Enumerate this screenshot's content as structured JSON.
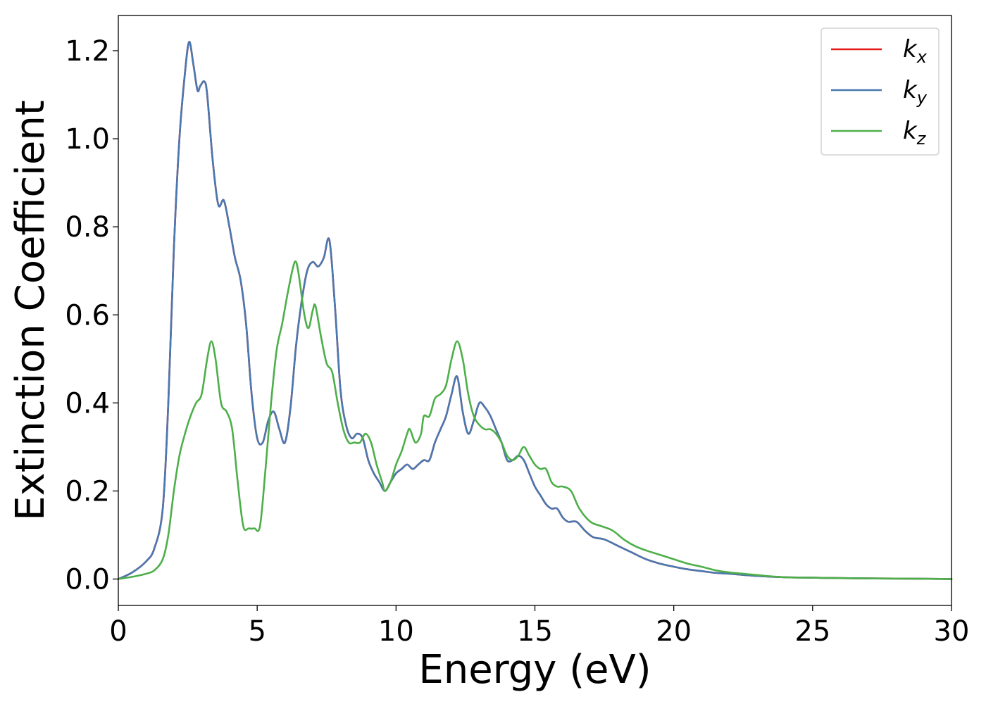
{
  "chart_data": {
    "type": "line",
    "title": "",
    "xlabel": "Energy (eV)",
    "ylabel": "Extinction Coefficient",
    "xlim": [
      0,
      30
    ],
    "ylim": [
      -0.06,
      1.28
    ],
    "xticks": [
      0,
      5,
      10,
      15,
      20,
      25,
      30
    ],
    "xtick_labels": [
      "0",
      "5",
      "10",
      "15",
      "20",
      "25",
      "30"
    ],
    "yticks": [
      0.0,
      0.2,
      0.4,
      0.6,
      0.8,
      1.0,
      1.2
    ],
    "ytick_labels": [
      "0.0",
      "0.2",
      "0.4",
      "0.6",
      "0.8",
      "1.0",
      "1.2"
    ],
    "grid": false,
    "legend_position": "top-right",
    "series": [
      {
        "name": "k_x",
        "base": "k",
        "sub": "x",
        "color": "#e41a1c",
        "x": [
          0,
          0.5,
          1.0,
          1.3,
          1.6,
          1.8,
          2.0,
          2.2,
          2.4,
          2.55,
          2.7,
          2.85,
          2.95,
          3.1,
          3.2,
          3.4,
          3.6,
          3.8,
          4.0,
          4.2,
          4.4,
          4.6,
          4.8,
          5.0,
          5.2,
          5.4,
          5.6,
          5.8,
          6.0,
          6.2,
          6.4,
          6.6,
          6.8,
          7.0,
          7.2,
          7.4,
          7.6,
          7.8,
          8.0,
          8.2,
          8.4,
          8.6,
          8.8,
          9.0,
          9.2,
          9.4,
          9.6,
          9.8,
          10.0,
          10.2,
          10.4,
          10.6,
          10.8,
          11.0,
          11.2,
          11.4,
          11.6,
          11.8,
          12.0,
          12.2,
          12.4,
          12.6,
          12.8,
          13.0,
          13.2,
          13.4,
          13.6,
          13.8,
          14.0,
          14.2,
          14.4,
          14.6,
          14.8,
          15.0,
          15.2,
          15.4,
          15.6,
          15.8,
          16.0,
          16.2,
          16.5,
          16.8,
          17.1,
          17.5,
          18.0,
          18.5,
          19.0,
          19.5,
          20.0,
          20.5,
          21.0,
          21.5,
          22.0,
          23.0,
          24.0,
          25.0,
          26.0,
          28.0,
          30.0
        ],
        "y": [
          0.0,
          0.015,
          0.04,
          0.07,
          0.16,
          0.4,
          0.75,
          1.0,
          1.15,
          1.22,
          1.17,
          1.11,
          1.12,
          1.13,
          1.1,
          0.95,
          0.85,
          0.86,
          0.8,
          0.73,
          0.68,
          0.58,
          0.42,
          0.32,
          0.31,
          0.36,
          0.38,
          0.34,
          0.31,
          0.39,
          0.53,
          0.63,
          0.7,
          0.72,
          0.71,
          0.73,
          0.77,
          0.62,
          0.43,
          0.35,
          0.32,
          0.33,
          0.32,
          0.27,
          0.24,
          0.22,
          0.2,
          0.22,
          0.24,
          0.25,
          0.26,
          0.25,
          0.26,
          0.27,
          0.27,
          0.31,
          0.34,
          0.37,
          0.42,
          0.46,
          0.38,
          0.33,
          0.36,
          0.4,
          0.39,
          0.37,
          0.34,
          0.31,
          0.27,
          0.27,
          0.28,
          0.27,
          0.24,
          0.21,
          0.19,
          0.17,
          0.16,
          0.16,
          0.14,
          0.13,
          0.13,
          0.11,
          0.095,
          0.09,
          0.075,
          0.06,
          0.045,
          0.035,
          0.028,
          0.022,
          0.018,
          0.014,
          0.012,
          0.007,
          0.004,
          0.003,
          0.002,
          0.001,
          0.0
        ]
      },
      {
        "name": "k_y",
        "base": "k",
        "sub": "y",
        "color": "#4a78b0",
        "x": [
          0,
          0.5,
          1.0,
          1.3,
          1.6,
          1.8,
          2.0,
          2.2,
          2.4,
          2.55,
          2.7,
          2.85,
          2.95,
          3.1,
          3.2,
          3.4,
          3.6,
          3.8,
          4.0,
          4.2,
          4.4,
          4.6,
          4.8,
          5.0,
          5.2,
          5.4,
          5.6,
          5.8,
          6.0,
          6.2,
          6.4,
          6.6,
          6.8,
          7.0,
          7.2,
          7.4,
          7.6,
          7.8,
          8.0,
          8.2,
          8.4,
          8.6,
          8.8,
          9.0,
          9.2,
          9.4,
          9.6,
          9.8,
          10.0,
          10.2,
          10.4,
          10.6,
          10.8,
          11.0,
          11.2,
          11.4,
          11.6,
          11.8,
          12.0,
          12.2,
          12.4,
          12.6,
          12.8,
          13.0,
          13.2,
          13.4,
          13.6,
          13.8,
          14.0,
          14.2,
          14.4,
          14.6,
          14.8,
          15.0,
          15.2,
          15.4,
          15.6,
          15.8,
          16.0,
          16.2,
          16.5,
          16.8,
          17.1,
          17.5,
          18.0,
          18.5,
          19.0,
          19.5,
          20.0,
          20.5,
          21.0,
          21.5,
          22.0,
          23.0,
          24.0,
          25.0,
          26.0,
          28.0,
          30.0
        ],
        "y": [
          0.0,
          0.015,
          0.04,
          0.07,
          0.16,
          0.4,
          0.75,
          1.0,
          1.15,
          1.22,
          1.17,
          1.11,
          1.12,
          1.13,
          1.1,
          0.95,
          0.85,
          0.86,
          0.8,
          0.73,
          0.68,
          0.58,
          0.42,
          0.32,
          0.31,
          0.36,
          0.38,
          0.34,
          0.31,
          0.39,
          0.53,
          0.63,
          0.7,
          0.72,
          0.71,
          0.73,
          0.77,
          0.62,
          0.43,
          0.35,
          0.32,
          0.33,
          0.32,
          0.27,
          0.24,
          0.22,
          0.2,
          0.22,
          0.24,
          0.25,
          0.26,
          0.25,
          0.26,
          0.27,
          0.27,
          0.31,
          0.34,
          0.37,
          0.42,
          0.46,
          0.38,
          0.33,
          0.36,
          0.4,
          0.39,
          0.37,
          0.34,
          0.31,
          0.27,
          0.27,
          0.28,
          0.27,
          0.24,
          0.21,
          0.19,
          0.17,
          0.16,
          0.16,
          0.14,
          0.13,
          0.13,
          0.11,
          0.095,
          0.09,
          0.075,
          0.06,
          0.045,
          0.035,
          0.028,
          0.022,
          0.018,
          0.014,
          0.012,
          0.007,
          0.004,
          0.003,
          0.002,
          0.001,
          0.0
        ]
      },
      {
        "name": "k_z",
        "base": "k",
        "sub": "z",
        "color": "#4daf4a",
        "x": [
          0,
          0.5,
          1.0,
          1.3,
          1.6,
          1.8,
          2.0,
          2.2,
          2.4,
          2.6,
          2.8,
          3.0,
          3.2,
          3.35,
          3.5,
          3.7,
          3.9,
          4.1,
          4.3,
          4.5,
          4.7,
          4.9,
          5.1,
          5.3,
          5.5,
          5.7,
          5.9,
          6.1,
          6.3,
          6.4,
          6.5,
          6.7,
          6.85,
          7.0,
          7.1,
          7.3,
          7.5,
          7.7,
          7.9,
          8.1,
          8.3,
          8.5,
          8.7,
          8.9,
          9.1,
          9.3,
          9.5,
          9.6,
          9.8,
          10.0,
          10.2,
          10.4,
          10.5,
          10.7,
          10.9,
          11.0,
          11.2,
          11.4,
          11.6,
          11.8,
          12.0,
          12.2,
          12.4,
          12.6,
          12.8,
          13.0,
          13.2,
          13.4,
          13.6,
          13.8,
          14.0,
          14.2,
          14.4,
          14.6,
          14.8,
          15.0,
          15.2,
          15.4,
          15.6,
          15.8,
          16.0,
          16.3,
          16.6,
          17.0,
          17.4,
          17.8,
          18.2,
          18.6,
          19.0,
          19.5,
          20.0,
          20.5,
          21.0,
          21.5,
          22.0,
          23.0,
          24.0,
          25.0,
          26.0,
          28.0,
          30.0
        ],
        "y": [
          0.0,
          0.005,
          0.012,
          0.02,
          0.045,
          0.1,
          0.2,
          0.28,
          0.33,
          0.37,
          0.4,
          0.42,
          0.5,
          0.54,
          0.5,
          0.4,
          0.38,
          0.34,
          0.22,
          0.12,
          0.115,
          0.115,
          0.12,
          0.25,
          0.4,
          0.52,
          0.58,
          0.65,
          0.71,
          0.72,
          0.69,
          0.6,
          0.57,
          0.61,
          0.62,
          0.55,
          0.49,
          0.47,
          0.4,
          0.34,
          0.31,
          0.31,
          0.31,
          0.33,
          0.31,
          0.26,
          0.22,
          0.2,
          0.22,
          0.26,
          0.29,
          0.33,
          0.34,
          0.31,
          0.33,
          0.37,
          0.37,
          0.41,
          0.42,
          0.44,
          0.5,
          0.54,
          0.5,
          0.42,
          0.37,
          0.35,
          0.34,
          0.34,
          0.33,
          0.31,
          0.28,
          0.27,
          0.28,
          0.3,
          0.28,
          0.26,
          0.25,
          0.25,
          0.22,
          0.21,
          0.21,
          0.2,
          0.16,
          0.13,
          0.12,
          0.11,
          0.09,
          0.075,
          0.065,
          0.055,
          0.045,
          0.035,
          0.028,
          0.02,
          0.015,
          0.009,
          0.004,
          0.003,
          0.002,
          0.001,
          0.0
        ]
      }
    ]
  }
}
